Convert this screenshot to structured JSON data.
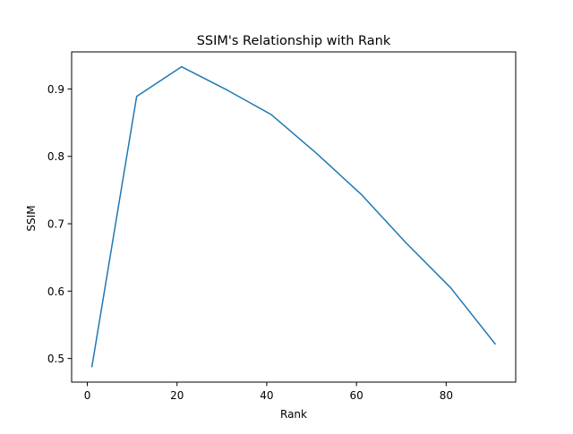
{
  "chart_data": {
    "type": "line",
    "title": "SSIM's Relationship with Rank",
    "xlabel": "Rank",
    "ylabel": "SSIM",
    "xlim": [
      -3.5,
      95.5
    ],
    "ylim": [
      0.465,
      0.955
    ],
    "xticks": [
      0,
      20,
      40,
      60,
      80
    ],
    "xtick_labels": [
      "0",
      "20",
      "40",
      "60",
      "80"
    ],
    "yticks": [
      0.5,
      0.6,
      0.7,
      0.8,
      0.9
    ],
    "ytick_labels": [
      "0.5",
      "0.6",
      "0.7",
      "0.8",
      "0.9"
    ],
    "grid": false,
    "series": [
      {
        "color": "#1f77b4",
        "x": [
          1,
          11,
          21,
          31,
          41,
          51,
          61,
          71,
          81,
          91
        ],
        "y": [
          0.487,
          0.889,
          0.933,
          0.899,
          0.862,
          0.805,
          0.744,
          0.672,
          0.605,
          0.521
        ]
      }
    ]
  }
}
